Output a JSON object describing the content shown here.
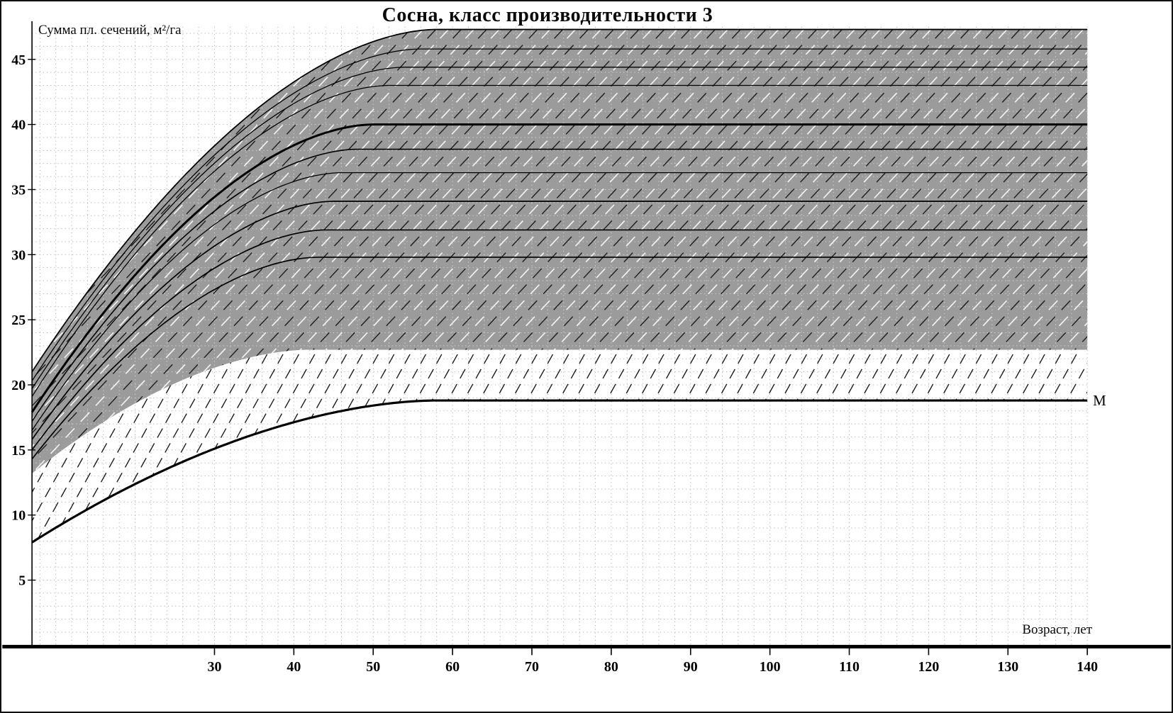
{
  "chart_data": {
    "type": "line",
    "title": "Сосна, класс производительности 3",
    "xlabel": "Возраст, лет",
    "ylabel": "Сумма пл. сечений, м²/га",
    "xlim": [
      7,
      140
    ],
    "ylim": [
      0,
      47.5
    ],
    "x_ticks": [
      30,
      40,
      50,
      60,
      70,
      80,
      90,
      100,
      110,
      120,
      130,
      140
    ],
    "y_ticks": [
      5,
      10,
      15,
      20,
      25,
      30,
      35,
      40,
      45
    ],
    "grid": true,
    "legend": "none",
    "band": {
      "color": "#9b9b9b",
      "top": {
        "start": 21.0,
        "plateau": 47.3,
        "t_end": 58
      },
      "bottom": {
        "start": 13.2,
        "plateau": 22.7,
        "t_end": 42
      }
    },
    "series": [
      {
        "name": "isoline-47.3",
        "start": 21.0,
        "plateau": 47.3,
        "t_end": 58,
        "width": 1.8
      },
      {
        "name": "isoline-45.8",
        "start": 20.3,
        "plateau": 45.8,
        "t_end": 56,
        "width": 1.3
      },
      {
        "name": "isoline-44.4",
        "start": 19.7,
        "plateau": 44.4,
        "t_end": 54,
        "width": 1.3
      },
      {
        "name": "isoline-43.0",
        "start": 19.1,
        "plateau": 43.0,
        "t_end": 52,
        "width": 1.3
      },
      {
        "name": "isoline-40.0",
        "start": 17.9,
        "plateau": 40.0,
        "t_end": 50,
        "width": 3.0
      },
      {
        "name": "isoline-38.1",
        "start": 17.2,
        "plateau": 38.1,
        "t_end": 48,
        "width": 1.6
      },
      {
        "name": "isoline-36.3",
        "start": 16.5,
        "plateau": 36.3,
        "t_end": 46,
        "width": 1.3
      },
      {
        "name": "isoline-34.1",
        "start": 15.8,
        "plateau": 34.1,
        "t_end": 45,
        "width": 1.7
      },
      {
        "name": "isoline-31.9",
        "start": 15.0,
        "plateau": 31.9,
        "t_end": 44,
        "width": 1.7
      },
      {
        "name": "isoline-29.8",
        "start": 14.3,
        "plateau": 29.8,
        "t_end": 43,
        "width": 1.7
      }
    ],
    "m_curve": {
      "name": "minimum-line",
      "label": "M",
      "start": 7.9,
      "plateau": 18.8,
      "t_end": 58,
      "width": 3.2
    },
    "diagonals": {
      "band_black": {
        "slope": 0.65,
        "step": 3.2,
        "offset": 0.0,
        "dash": "18 13",
        "color": "#1c1c1c",
        "width": 1.4
      },
      "band_white": {
        "slope": 0.65,
        "step": 3.2,
        "offset": 1.6,
        "dash": "18 13",
        "color": "#f1f1f1",
        "width": 1.7
      },
      "hatch": {
        "slope": 1.1,
        "step": 2.0,
        "offset": 0.5,
        "dash": "15 9",
        "color": "#1c1c1c",
        "width": 1.4
      }
    },
    "axis_color": "#000000",
    "grid_color": "#a8a8a8"
  }
}
